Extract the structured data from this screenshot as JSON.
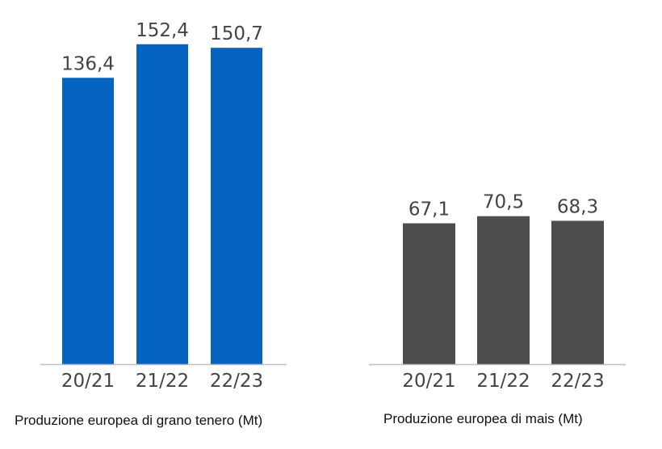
{
  "chart_data": [
    {
      "type": "bar",
      "title": "Produzione europea di grano tenero (Mt)",
      "categories": [
        "20/21",
        "21/22",
        "22/23"
      ],
      "values": [
        136.4,
        152.4,
        150.7
      ],
      "data_labels": [
        "136,4",
        "152,4",
        "150,7"
      ],
      "color": "#0563c1",
      "grid": false,
      "ylim": [
        0,
        175
      ]
    },
    {
      "type": "bar",
      "title": "Produzione europea di mais (Mt)",
      "categories": [
        "20/21",
        "21/22",
        "22/23"
      ],
      "values": [
        67.1,
        70.5,
        68.3
      ],
      "data_labels": [
        "67,1",
        "70,5",
        "68,3"
      ],
      "color": "#4d4d4f",
      "grid": false,
      "ylim": [
        0,
        175
      ]
    }
  ]
}
